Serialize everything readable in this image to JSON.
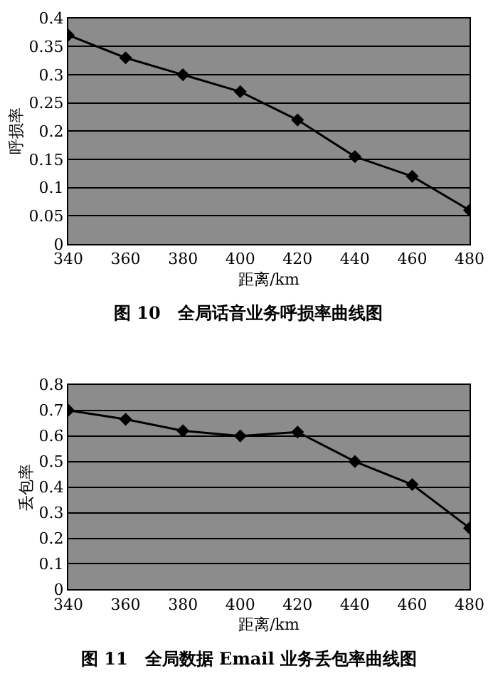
{
  "chart_data": [
    {
      "type": "line",
      "title": "图 10　全局话音业务呼损率曲线图",
      "xlabel": "距离/km",
      "ylabel": "呼损率",
      "x": [
        340,
        360,
        380,
        400,
        420,
        440,
        460,
        480
      ],
      "series": [
        {
          "color": "#000000",
          "values": [
            0.37,
            0.33,
            0.3,
            0.27,
            0.22,
            0.155,
            0.12,
            0.06
          ]
        }
      ],
      "xlim": [
        340,
        480
      ],
      "xticks": [
        340,
        360,
        380,
        400,
        420,
        440,
        460,
        480
      ],
      "ylim": [
        0,
        0.4
      ],
      "yticks": [
        0,
        0.05,
        0.1,
        0.15,
        0.2,
        0.25,
        0.3,
        0.35,
        0.4
      ],
      "grid": "y",
      "marker": "diamond",
      "line_style": "solid"
    },
    {
      "type": "line",
      "title": "图 11　全局数据 Email 业务丢包率曲线图",
      "xlabel": "距离/km",
      "ylabel": "丢包率",
      "x": [
        340,
        360,
        380,
        400,
        420,
        440,
        460,
        480
      ],
      "series": [
        {
          "color": "#000000",
          "values": [
            0.7,
            0.665,
            0.62,
            0.6,
            0.615,
            0.5,
            0.41,
            0.24
          ]
        }
      ],
      "xlim": [
        340,
        480
      ],
      "xticks": [
        340,
        360,
        380,
        400,
        420,
        440,
        460,
        480
      ],
      "ylim": [
        0,
        0.8
      ],
      "yticks": [
        0,
        0.1,
        0.2,
        0.3,
        0.4,
        0.5,
        0.6,
        0.7,
        0.8
      ],
      "grid": "y",
      "marker": "diamond",
      "line_style": "solid"
    }
  ]
}
